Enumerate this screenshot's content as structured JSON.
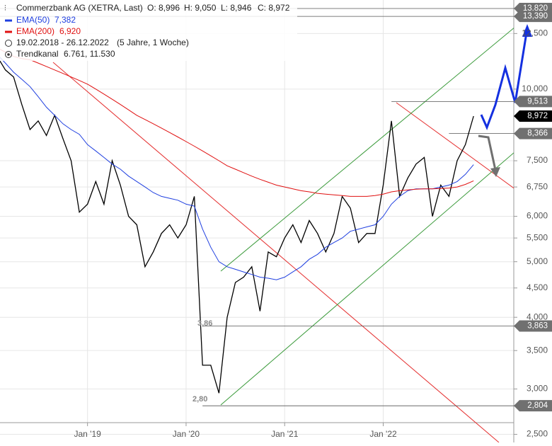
{
  "chart_data": {
    "type": "line",
    "title": "Commerzbank AG (XETRA, Last)",
    "ohlc_text": [
      "O: 8,996",
      "H: 9,050",
      "L: 8,946",
      "C: 8,972"
    ],
    "period": "19.02.2018 - 26.12.2022",
    "period_note": "(5 Jahre, 1 Woche)",
    "channel_label": "Trendkanal",
    "channel_value": "6.761, 11.530",
    "log_scale": true,
    "x": [
      "2018-02",
      "2018-03",
      "2018-04",
      "2018-05",
      "2018-06",
      "2018-07",
      "2018-08",
      "2018-09",
      "2018-10",
      "2018-11",
      "2018-12",
      "2019-01",
      "2019-02",
      "2019-03",
      "2019-04",
      "2019-05",
      "2019-06",
      "2019-07",
      "2019-08",
      "2019-09",
      "2019-10",
      "2019-11",
      "2019-12",
      "2020-01",
      "2020-02",
      "2020-03",
      "2020-04",
      "2020-05",
      "2020-06",
      "2020-07",
      "2020-08",
      "2020-09",
      "2020-10",
      "2020-11",
      "2020-12",
      "2021-01",
      "2021-02",
      "2021-03",
      "2021-04",
      "2021-05",
      "2021-06",
      "2021-07",
      "2021-08",
      "2021-09",
      "2021-10",
      "2021-11",
      "2021-12",
      "2022-01",
      "2022-02",
      "2022-03",
      "2022-04",
      "2022-05",
      "2022-06",
      "2022-07",
      "2022-08",
      "2022-09",
      "2022-10",
      "2022-11",
      "2022-12"
    ],
    "xlim": [
      "2018-02",
      "2023-03"
    ],
    "xticks": [
      {
        "value": "2019-01",
        "label": "Jan '19"
      },
      {
        "value": "2020-01",
        "label": "Jan '20"
      },
      {
        "value": "2021-01",
        "label": "Jan '21"
      },
      {
        "value": "2022-01",
        "label": "Jan '22"
      }
    ],
    "ylim": [
      2420,
      14300
    ],
    "yticks": [
      {
        "value": 2500,
        "label": "2,500"
      },
      {
        "value": 3000,
        "label": "3,000"
      },
      {
        "value": 3500,
        "label": "3,500"
      },
      {
        "value": 4000,
        "label": "4,000"
      },
      {
        "value": 4500,
        "label": "4,500"
      },
      {
        "value": 5000,
        "label": "5,000"
      },
      {
        "value": 5500,
        "label": "5,500"
      },
      {
        "value": 6000,
        "label": "6,000"
      },
      {
        "value": 6750,
        "label": "6,750"
      },
      {
        "value": 7500,
        "label": "7,500"
      },
      {
        "value": 10000,
        "label": "10,000"
      },
      {
        "value": 12500,
        "label": "12,500"
      }
    ],
    "series": [
      {
        "name": "Commerzbank AG",
        "color": "#000000",
        "values": [
          11400,
          10800,
          10500,
          9400,
          8500,
          8800,
          8300,
          9000,
          8200,
          7500,
          6100,
          6300,
          6900,
          6300,
          7500,
          6800,
          6000,
          5800,
          4900,
          5200,
          5600,
          5800,
          5500,
          5800,
          6500,
          3300,
          3300,
          2950,
          4000,
          4600,
          4700,
          4900,
          4100,
          5200,
          5100,
          5500,
          5800,
          5400,
          5900,
          5600,
          5200,
          5600,
          6500,
          6200,
          5400,
          5600,
          5600,
          6800,
          8800,
          6500,
          7000,
          7400,
          7600,
          6000,
          6800,
          6500,
          7500,
          8000,
          8972
        ]
      },
      {
        "name": "EMA(50)",
        "last_label": "7,382",
        "color": "#1f3fe0",
        "values": [
          11500,
          11100,
          10700,
          10400,
          10100,
          9700,
          9300,
          9000,
          8700,
          8500,
          8340,
          8000,
          7800,
          7600,
          7400,
          7250,
          7050,
          6900,
          6750,
          6600,
          6500,
          6450,
          6400,
          6300,
          6250,
          5700,
          5300,
          5000,
          4900,
          4850,
          4800,
          4750,
          4700,
          4680,
          4650,
          4700,
          4800,
          4900,
          5050,
          5150,
          5300,
          5400,
          5500,
          5650,
          5700,
          5750,
          5800,
          6000,
          6300,
          6500,
          6650,
          6700,
          6700,
          6700,
          6750,
          6800,
          6900,
          7100,
          7382
        ]
      },
      {
        "name": "EMA(200)",
        "last_label": "6,920",
        "color": "#e01010",
        "values": [
          11800,
          11600,
          11400,
          11300,
          11250,
          11100,
          10950,
          10800,
          10650,
          10500,
          10350,
          10200,
          10000,
          9800,
          9600,
          9400,
          9200,
          9000,
          8850,
          8700,
          8550,
          8400,
          8250,
          8100,
          7950,
          7800,
          7650,
          7500,
          7350,
          7250,
          7150,
          7050,
          6960,
          6880,
          6800,
          6750,
          6700,
          6650,
          6620,
          6580,
          6560,
          6540,
          6520,
          6500,
          6500,
          6500,
          6520,
          6560,
          6620,
          6650,
          6670,
          6690,
          6700,
          6700,
          6710,
          6720,
          6750,
          6820,
          6920
        ]
      }
    ],
    "levels": [
      {
        "value": 13820,
        "label": "13,820",
        "color": "#707070"
      },
      {
        "value": 13390,
        "label": "13,390",
        "color": "#707070"
      },
      {
        "value": 9513,
        "label": "9,513",
        "color": "#707070",
        "from": "2022-02"
      },
      {
        "value": 8972,
        "label": "8,972",
        "color": "#000000"
      },
      {
        "value": 8366,
        "label": "8,366",
        "color": "#707070",
        "from": "2022-09"
      },
      {
        "value": 3863,
        "label": "3,863",
        "color": "#707070",
        "from": "2020-03"
      },
      {
        "value": 2804,
        "label": "2,804",
        "color": "#707070",
        "from": "2020-03"
      }
    ],
    "annotations": [
      "3,86",
      "2,80"
    ]
  }
}
